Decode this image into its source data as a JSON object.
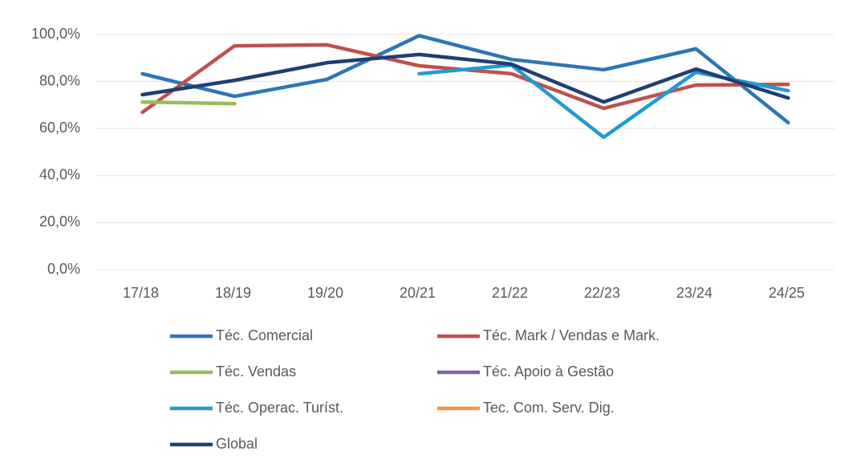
{
  "chart_data": {
    "type": "line",
    "categories": [
      "17/18",
      "18/19",
      "19/20",
      "20/21",
      "21/22",
      "22/23",
      "23/24",
      "24/25"
    ],
    "series": [
      {
        "name": "Téc. Comercial",
        "color": "#2e75b6",
        "values": [
          83.3,
          73.7,
          80.9,
          99.5,
          89.4,
          85.0,
          93.9,
          62.5
        ]
      },
      {
        "name": "Téc. Mark / Vendas e Mark.",
        "color": "#c0504d",
        "values": [
          66.9,
          95.2,
          95.6,
          86.7,
          83.3,
          68.6,
          78.5,
          78.8
        ]
      },
      {
        "name": "Téc. Vendas",
        "color": "#9bbb59",
        "values": [
          71.3,
          70.6,
          null,
          null,
          null,
          null,
          null,
          null
        ]
      },
      {
        "name": "Téc. Apoio à Gestão",
        "color": "#8064a2",
        "values": [
          null,
          null,
          null,
          null,
          null,
          null,
          null,
          null
        ]
      },
      {
        "name": "Téc. Operac. Turíst.",
        "color": "#1f9bd6",
        "values": [
          null,
          null,
          null,
          83.3,
          87.0,
          56.3,
          84.0,
          76.1
        ]
      },
      {
        "name": "Tec. Com. Serv. Dig.",
        "color": "#f79646",
        "values": [
          null,
          null,
          null,
          null,
          null,
          null,
          null,
          null
        ]
      },
      {
        "name": "Global",
        "color": "#1f3f74",
        "values": [
          74.4,
          80.5,
          88.0,
          91.5,
          87.4,
          71.3,
          85.3,
          73.0
        ]
      }
    ],
    "ylim": [
      0,
      100
    ],
    "yticks": [
      {
        "value": 0,
        "label": "0,0%"
      },
      {
        "value": 20,
        "label": "20,0%"
      },
      {
        "value": 40,
        "label": "40,0%"
      },
      {
        "value": 60,
        "label": "60,0%"
      },
      {
        "value": 80,
        "label": "80,0%"
      },
      {
        "value": 100,
        "label": "100,0%"
      }
    ],
    "grid": true
  }
}
